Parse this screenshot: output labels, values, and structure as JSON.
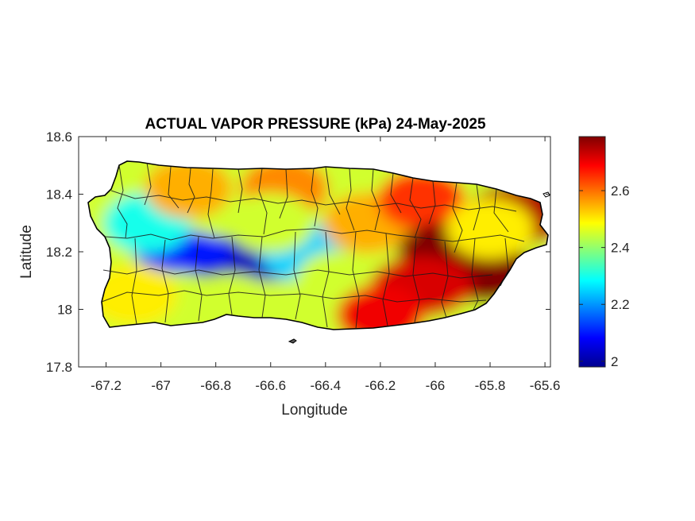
{
  "title": "ACTUAL VAPOR PRESSURE (kPa) 24-May-2025",
  "chart_data": {
    "type": "heatmap",
    "title": "ACTUAL VAPOR PRESSURE (kPa) 24-May-2025",
    "xlabel": "Longitude",
    "ylabel": "Latitude",
    "xlim": [
      -67.3,
      -65.58
    ],
    "ylim": [
      17.8,
      18.6
    ],
    "xticks": [
      "-67.2",
      "-67",
      "-66.8",
      "-66.6",
      "-66.4",
      "-66.2",
      "-66",
      "-65.8",
      "-65.6"
    ],
    "xtick_values": [
      -67.2,
      -67.0,
      -66.8,
      -66.6,
      -66.4,
      -66.2,
      -66.0,
      -65.8,
      -65.6
    ],
    "yticks": [
      "18.6",
      "18.4",
      "18.2",
      "18",
      "17.8"
    ],
    "ytick_values": [
      18.6,
      18.4,
      18.2,
      18.0,
      17.8
    ],
    "colorbar": {
      "colormap": "jet",
      "range": [
        1.98,
        2.79
      ],
      "ticks": [
        "2.6",
        "2.4",
        "2.2",
        "2"
      ],
      "tick_values": [
        2.6,
        2.4,
        2.2,
        2.0
      ]
    },
    "grid": false,
    "region": "Puerto Rico (municipality boundaries overlaid)",
    "field_blobs": [
      {
        "lon": -66.78,
        "lat": 18.18,
        "value": 2.0
      },
      {
        "lon": -66.62,
        "lat": 18.17,
        "value": 2.03
      },
      {
        "lon": -66.92,
        "lat": 18.2,
        "value": 2.1
      },
      {
        "lon": -66.48,
        "lat": 18.2,
        "value": 2.25
      },
      {
        "lon": -67.05,
        "lat": 18.3,
        "value": 2.3
      },
      {
        "lon": -66.9,
        "lat": 18.42,
        "value": 2.55
      },
      {
        "lon": -66.55,
        "lat": 18.42,
        "value": 2.58
      },
      {
        "lon": -66.6,
        "lat": 18.3,
        "value": 2.45
      },
      {
        "lon": -66.35,
        "lat": 18.1,
        "value": 2.45
      },
      {
        "lon": -66.75,
        "lat": 18.02,
        "value": 2.45
      },
      {
        "lon": -67.1,
        "lat": 18.05,
        "value": 2.5
      },
      {
        "lon": -66.25,
        "lat": 18.3,
        "value": 2.55
      },
      {
        "lon": -66.05,
        "lat": 18.38,
        "value": 2.65
      },
      {
        "lon": -65.95,
        "lat": 18.2,
        "value": 2.79
      },
      {
        "lon": -65.82,
        "lat": 18.13,
        "value": 2.79
      },
      {
        "lon": -66.05,
        "lat": 18.08,
        "value": 2.72
      },
      {
        "lon": -66.2,
        "lat": 17.98,
        "value": 2.7
      },
      {
        "lon": -65.7,
        "lat": 18.33,
        "value": 2.75
      },
      {
        "lon": -65.8,
        "lat": 18.28,
        "value": 2.5
      }
    ]
  }
}
